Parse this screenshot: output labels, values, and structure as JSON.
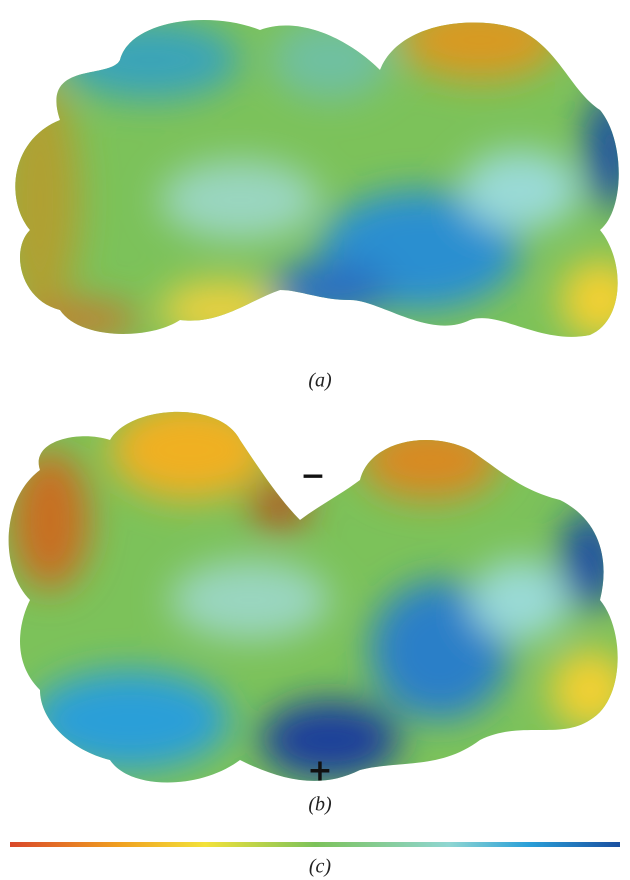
{
  "panels": [
    {
      "label": "(a)"
    },
    {
      "label": "(b)",
      "annotations": [
        "−",
        "+"
      ]
    }
  ],
  "colorbar": {
    "label": "(c)"
  }
}
